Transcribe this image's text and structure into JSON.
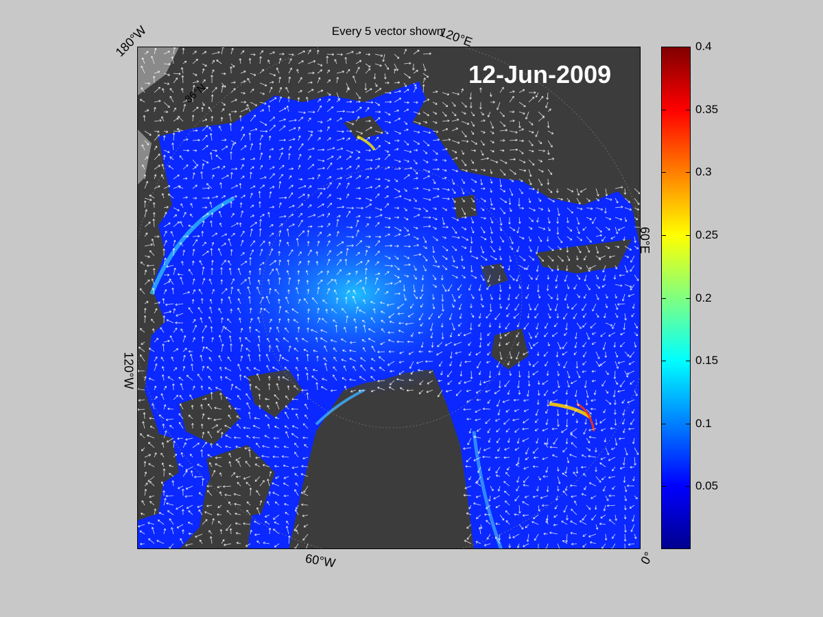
{
  "title": "Every 5 vector shown",
  "date": "12-Jun-2009",
  "longitude_labels": {
    "lon_180w": "180°W",
    "lon_120e": "120°E",
    "lon_60e": "60°E",
    "lon_120w": "120°W",
    "lon_60w": "60°W",
    "lon_0": "0°"
  },
  "latitude_labels": {
    "lat_86n": "86°N"
  },
  "colorbar": {
    "min": 0,
    "max": 0.4,
    "colormap": "jet",
    "ticks": [
      "0.05",
      "0.1",
      "0.15",
      "0.2",
      "0.25",
      "0.3",
      "0.35",
      "0.4"
    ]
  },
  "colors": {
    "land": "#3c3c3c",
    "ice_sea": "#0a28ff",
    "open_water": "#8a8a8a",
    "vectors": "#ffffff"
  }
}
